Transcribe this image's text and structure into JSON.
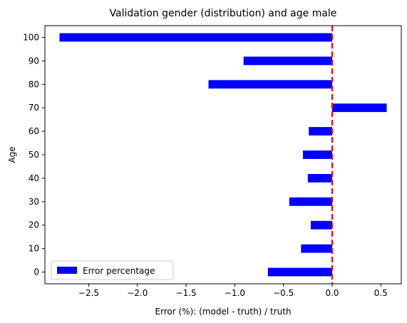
{
  "chart_data": {
    "type": "bar",
    "orientation": "horizontal",
    "title": "Validation gender (distribution) and age male",
    "xlabel": "Error (%): (model - truth) / truth",
    "ylabel": "Age",
    "categories": [
      "0",
      "10",
      "20",
      "30",
      "40",
      "50",
      "60",
      "70",
      "80",
      "90",
      "100"
    ],
    "series": [
      {
        "name": "Error percentage",
        "color": "#0000ff",
        "values": [
          -0.66,
          -0.32,
          -0.22,
          -0.44,
          -0.25,
          -0.3,
          -0.24,
          0.56,
          -1.27,
          -0.91,
          -2.8
        ]
      }
    ],
    "xlim": [
      -2.95,
      0.71
    ],
    "xticks": [
      -2.5,
      -2.0,
      -1.5,
      -1.0,
      -0.5,
      0.0,
      0.5
    ],
    "xtick_labels": [
      "−2.5",
      "−2.0",
      "−1.5",
      "−1.0",
      "−0.5",
      "0.0",
      "0.5"
    ],
    "reference_line": {
      "x": 0.0,
      "color": "#ff0000",
      "style": "dashed"
    },
    "grid": false,
    "legend_position": "lower-left"
  }
}
